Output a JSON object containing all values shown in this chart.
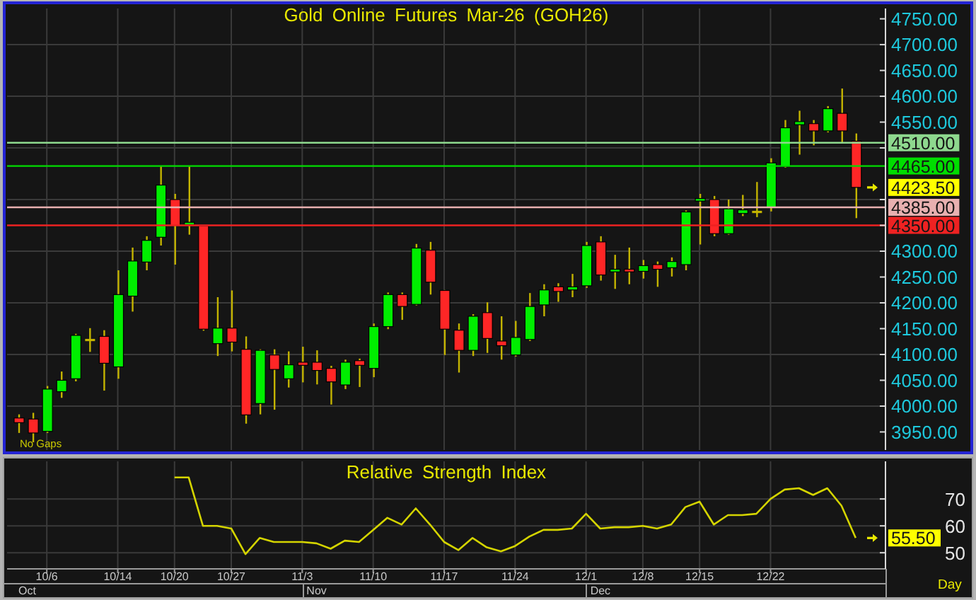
{
  "chart_data": [
    {
      "type": "candlestick",
      "title": "Gold Online Futures Mar-26 (GOH26)",
      "categories": [
        null,
        null,
        null,
        null,
        null,
        null,
        null,
        null,
        null,
        null,
        null,
        null,
        null,
        null,
        null,
        null,
        null,
        null,
        null,
        null,
        null,
        null,
        null,
        null,
        null,
        null,
        null,
        null,
        null,
        null,
        null,
        null,
        null,
        null,
        null,
        null,
        null,
        null,
        null,
        null,
        null,
        null,
        null,
        null,
        null,
        null,
        null,
        null,
        null,
        null,
        null,
        null,
        null,
        null,
        null,
        null,
        null,
        null,
        null,
        null
      ],
      "ohlc": [
        [
          3977,
          3984,
          3948,
          3968
        ],
        [
          3975,
          3987,
          3930,
          3948
        ],
        [
          3951,
          4039,
          3948,
          4033
        ],
        [
          4028,
          4067,
          4016,
          4050
        ],
        [
          4053,
          4140,
          4048,
          4137
        ],
        [
          4128,
          4151,
          4105,
          4128
        ],
        [
          4135,
          4147,
          4030,
          4083
        ],
        [
          4076,
          4263,
          4053,
          4216
        ],
        [
          4213,
          4307,
          4183,
          4281
        ],
        [
          4279,
          4329,
          4263,
          4321
        ],
        [
          4327,
          4464,
          4311,
          4428
        ],
        [
          4400,
          4411,
          4274,
          4350
        ],
        [
          4351,
          4464,
          4332,
          4356
        ],
        [
          4349,
          4350,
          4146,
          4149
        ],
        [
          4121,
          4211,
          4097,
          4151
        ],
        [
          4151,
          4224,
          4106,
          4124
        ],
        [
          4110,
          4135,
          3966,
          3983
        ],
        [
          4005,
          4110,
          3984,
          4108
        ],
        [
          4099,
          4110,
          3993,
          4071
        ],
        [
          4053,
          4106,
          4036,
          4080
        ],
        [
          4085,
          4115,
          4046,
          4079
        ],
        [
          4085,
          4108,
          4042,
          4069
        ],
        [
          4073,
          4078,
          4003,
          4047
        ],
        [
          4041,
          4090,
          4033,
          4085
        ],
        [
          4088,
          4092,
          4037,
          4079
        ],
        [
          4073,
          4160,
          4056,
          4154
        ],
        [
          4154,
          4220,
          4149,
          4216
        ],
        [
          4216,
          4220,
          4167,
          4193
        ],
        [
          4197,
          4314,
          4195,
          4306
        ],
        [
          4302,
          4318,
          4216,
          4240
        ],
        [
          4224,
          4225,
          4099,
          4149
        ],
        [
          4147,
          4160,
          4065,
          4108
        ],
        [
          4108,
          4178,
          4097,
          4174
        ],
        [
          4181,
          4201,
          4103,
          4131
        ],
        [
          4126,
          4174,
          4090,
          4117
        ],
        [
          4099,
          4165,
          4096,
          4133
        ],
        [
          4129,
          4219,
          4126,
          4193
        ],
        [
          4196,
          4236,
          4174,
          4225
        ],
        [
          4231,
          4238,
          4202,
          4222
        ],
        [
          4225,
          4256,
          4211,
          4231
        ],
        [
          4233,
          4318,
          4229,
          4311
        ],
        [
          4318,
          4329,
          4243,
          4254
        ],
        [
          4260,
          4293,
          4227,
          4265
        ],
        [
          4265,
          4307,
          4236,
          4260
        ],
        [
          4261,
          4283,
          4247,
          4272
        ],
        [
          4274,
          4280,
          4231,
          4265
        ],
        [
          4268,
          4288,
          4251,
          4280
        ],
        [
          4274,
          4379,
          4263,
          4376
        ],
        [
          4397,
          4411,
          4313,
          4402
        ],
        [
          4400,
          4407,
          4329,
          4334
        ],
        [
          4334,
          4400,
          4332,
          4382
        ],
        [
          4373,
          4409,
          4368,
          4380
        ],
        [
          4376,
          4434,
          4366,
          4376
        ],
        [
          4385,
          4480,
          4377,
          4471
        ],
        [
          4464,
          4554,
          4462,
          4539
        ],
        [
          4545,
          4572,
          4487,
          4551
        ],
        [
          4547,
          4554,
          4505,
          4533
        ],
        [
          4533,
          4581,
          4530,
          4576
        ],
        [
          4567,
          4615,
          4510,
          4533
        ],
        [
          4513,
          4528,
          4364,
          4423.5
        ]
      ],
      "colors": [
        "#ff2626",
        "#ff2626",
        "#00ee00",
        "#00ee00",
        "#00ee00",
        "#c4b400",
        "#ff2626",
        "#00ee00",
        "#00ee00",
        "#00ee00",
        "#00ee00",
        "#ff2626",
        "#00ee00",
        "#ff2626",
        "#00ee00",
        "#ff2626",
        "#ff2626",
        "#00ee00",
        "#ff2626",
        "#00ee00",
        "#ff2626",
        "#ff2626",
        "#ff2626",
        "#00ee00",
        "#ff2626",
        "#00ee00",
        "#00ee00",
        "#ff2626",
        "#00ee00",
        "#ff2626",
        "#ff2626",
        "#ff2626",
        "#00ee00",
        "#ff2626",
        "#ff2626",
        "#00ee00",
        "#00ee00",
        "#00ee00",
        "#ff2626",
        "#00ee00",
        "#00ee00",
        "#ff2626",
        "#00ee00",
        "#ff2626",
        "#00ee00",
        "#ff2626",
        "#00ee00",
        "#00ee00",
        "#00ee00",
        "#ff2626",
        "#00ee00",
        "#00ee00",
        "#c4b400",
        "#00ee00",
        "#00ee00",
        "#00ee00",
        "#ff2626",
        "#00ee00",
        "#ff2626",
        "#ff2626"
      ],
      "ylim": [
        3915,
        4770
      ],
      "yticks": [
        {
          "value": 3950,
          "label": "3950.00"
        },
        {
          "value": 4000,
          "label": "4000.00"
        },
        {
          "value": 4050,
          "label": "4050.00"
        },
        {
          "value": 4100,
          "label": "4100.00"
        },
        {
          "value": 4150,
          "label": "4150.00"
        },
        {
          "value": 4200,
          "label": "4200.00"
        },
        {
          "value": 4250,
          "label": "4250.00"
        },
        {
          "value": 4300,
          "label": "4300.00"
        },
        {
          "value": 4350,
          "label": null
        },
        {
          "value": 4400,
          "label": null
        },
        {
          "value": 4500,
          "label": null
        },
        {
          "value": 4550,
          "label": "4550.00"
        },
        {
          "value": 4600,
          "label": "4600.00"
        },
        {
          "value": 4650,
          "label": "4650.00"
        },
        {
          "value": 4700,
          "label": "4700.00"
        },
        {
          "value": 4750,
          "label": "4750.00"
        }
      ],
      "grid": true,
      "tick_labels": "y",
      "ref_lines": [
        {
          "axis": "y",
          "value": 4510,
          "label": "4510.00",
          "color": "#8ed88e"
        },
        {
          "axis": "y",
          "value": 4465,
          "label": "4465.00",
          "color": "#00dd00"
        },
        {
          "axis": "y",
          "value": 4385,
          "label": "4385.00",
          "color": "#e8b0b0"
        },
        {
          "axis": "y",
          "value": 4350,
          "label": "4350.00",
          "color": "#ee2222"
        }
      ],
      "annotations": [
        "No Gaps",
        "4423.50"
      ]
    },
    {
      "type": "line",
      "title": "Relative Strength Index",
      "categories": [
        null,
        null,
        "10/6",
        null,
        null,
        null,
        null,
        "10/14",
        null,
        null,
        null,
        "10/20",
        null,
        null,
        null,
        "10/27",
        null,
        null,
        null,
        null,
        "11/3",
        null,
        null,
        null,
        null,
        "11/10",
        null,
        null,
        null,
        null,
        "11/17",
        null,
        null,
        null,
        null,
        "11/24",
        null,
        null,
        null,
        null,
        "12/1",
        null,
        null,
        null,
        "12/8",
        null,
        null,
        null,
        "12/15",
        null,
        null,
        null,
        null,
        "12/22",
        null,
        null,
        null,
        null,
        null,
        null
      ],
      "series": [
        {
          "color": "#d4d400",
          "values": [
            null,
            null,
            null,
            null,
            null,
            null,
            null,
            null,
            null,
            null,
            null,
            78,
            78,
            60,
            60,
            59,
            49.5,
            55.5,
            54,
            54,
            54,
            53.5,
            51.5,
            54.5,
            54,
            58.5,
            63,
            60.5,
            66.5,
            60.5,
            54,
            51,
            55.5,
            52,
            50.5,
            52.5,
            56,
            58.5,
            58.5,
            59,
            64.5,
            59,
            59.5,
            59.5,
            60,
            59,
            60.5,
            67,
            69,
            60.5,
            64,
            64,
            64.5,
            70,
            73.5,
            74,
            71.5,
            74,
            67.5,
            55.5
          ]
        }
      ],
      "ylim": [
        44,
        84
      ],
      "yticks": [
        50,
        60,
        70
      ],
      "grid": true,
      "annotations": [
        "55.50",
        "Oct",
        "Nov",
        "Dec",
        "Day"
      ]
    }
  ]
}
